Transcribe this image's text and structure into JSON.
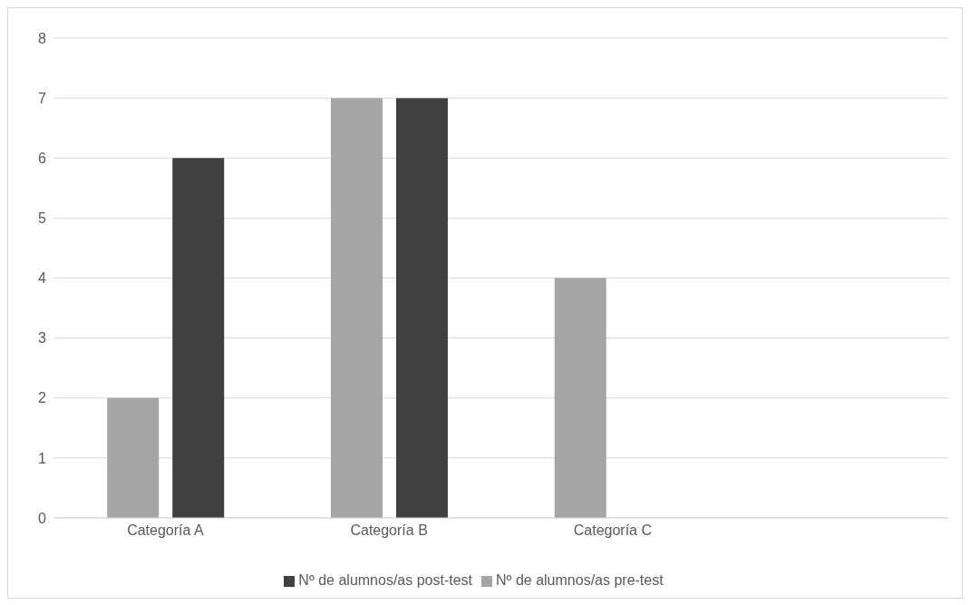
{
  "chart_data": {
    "type": "bar",
    "categories": [
      "Categoría A",
      "Categoría B",
      "Categoría C",
      null
    ],
    "series": [
      {
        "name": "Nº de alumnos/as pre-test",
        "color": "#a5a5a5",
        "values": [
          2,
          7,
          4,
          null
        ]
      },
      {
        "name": "Nº de alumnos/as post-test",
        "color": "#404040",
        "values": [
          6,
          7,
          0,
          null
        ]
      }
    ],
    "ylim": [
      0,
      8
    ],
    "yticks": [
      0,
      1,
      2,
      3,
      4,
      5,
      6,
      7,
      8
    ],
    "grid": "y",
    "legend": "bottom"
  }
}
